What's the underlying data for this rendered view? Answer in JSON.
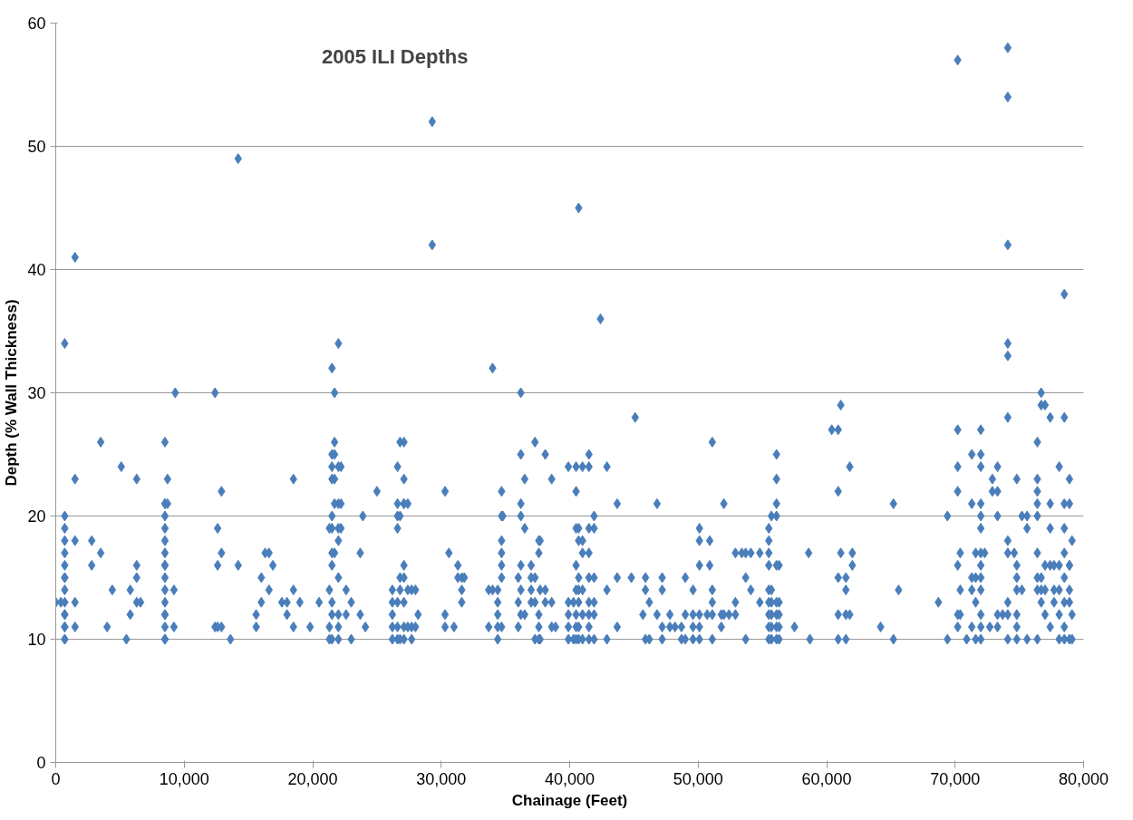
{
  "chart_data": {
    "type": "scatter",
    "title": "2005 ILI Depths",
    "xlabel": "Chainage (Feet)",
    "ylabel": "Depth (% Wall Thickness)",
    "xlim": [
      0,
      80000
    ],
    "ylim": [
      0,
      60
    ],
    "xticks": [
      0,
      {
        "value": 10000,
        "label": "10,000"
      },
      {
        "value": 20000,
        "label": "20,000"
      },
      {
        "value": 30000,
        "label": "30,000"
      },
      {
        "value": 40000,
        "label": "40,000"
      },
      {
        "value": 50000,
        "label": "50,000"
      },
      {
        "value": 60000,
        "label": "60,000"
      },
      {
        "value": 70000,
        "label": "70,000"
      },
      {
        "value": 80000,
        "label": "80,000"
      }
    ],
    "yticks": [
      0,
      10,
      20,
      30,
      40,
      50,
      60
    ],
    "grid": "y",
    "marker": "diamond",
    "series": [
      {
        "color": "#4a7ebb",
        "x": [
          0,
          400,
          700,
          700,
          700,
          700,
          700,
          700,
          700,
          700,
          700,
          700,
          700,
          700,
          700,
          700,
          700,
          700,
          1500,
          1500,
          1500,
          1500,
          1500,
          2800,
          2800,
          3500,
          3500,
          4400,
          4000,
          5100,
          5800,
          5800,
          5500,
          6300,
          6300,
          6300,
          6300,
          6600,
          8500,
          8500,
          8500,
          8500,
          8500,
          8500,
          8500,
          8500,
          8500,
          8500,
          8500,
          8500,
          8500,
          8500,
          8500,
          8500,
          8500,
          8700,
          8700,
          9200,
          9200,
          9300,
          12400,
          12400,
          12600,
          12600,
          12600,
          12900,
          12900,
          12900,
          13600,
          14200,
          14200,
          15600,
          15600,
          16000,
          16000,
          16300,
          16600,
          16600,
          16900,
          17600,
          18000,
          18000,
          18500,
          18500,
          18500,
          19000,
          19800,
          20500,
          21300,
          21300,
          21300,
          21300,
          21500,
          21500,
          21500,
          21500,
          21500,
          21500,
          21500,
          21500,
          21500,
          21500,
          21500,
          21700,
          21700,
          21700,
          21700,
          21700,
          21700,
          22000,
          22000,
          22000,
          22000,
          22000,
          22000,
          22000,
          22000,
          22000,
          22200,
          22200,
          22200,
          22600,
          22600,
          23000,
          23000,
          23700,
          23700,
          23900,
          24100,
          25000,
          26200,
          26200,
          26200,
          26200,
          26200,
          26600,
          26600,
          26600,
          26600,
          26600,
          26600,
          26600,
          26800,
          26800,
          26800,
          26800,
          26800,
          27100,
          27100,
          27100,
          27100,
          27100,
          27100,
          27100,
          27100,
          27100,
          27400,
          27400,
          27400,
          27700,
          27700,
          27700,
          28000,
          28000,
          28200,
          29300,
          29300,
          30300,
          30300,
          30300,
          30600,
          31000,
          31300,
          31300,
          31600,
          31600,
          31600,
          31800,
          33700,
          33700,
          34000,
          34000,
          34400,
          34400,
          34400,
          34400,
          34400,
          34700,
          34700,
          34700,
          34700,
          34700,
          34700,
          34700,
          34800,
          36000,
          36000,
          36000,
          36200,
          36200,
          36200,
          36200,
          36200,
          36200,
          36200,
          36500,
          36500,
          36500,
          37000,
          37000,
          37000,
          37000,
          37300,
          37300,
          37300,
          37300,
          37600,
          37600,
          37600,
          37600,
          37600,
          37700,
          37700,
          37700,
          38100,
          38100,
          38100,
          38600,
          38600,
          38600,
          38900,
          39900,
          39900,
          39900,
          39900,
          39900,
          40300,
          40300,
          40500,
          40500,
          40500,
          40500,
          40500,
          40500,
          40500,
          40500,
          40700,
          40700,
          40700,
          40700,
          40700,
          40700,
          40700,
          40700,
          41000,
          41000,
          41000,
          41000,
          41000,
          41000,
          41500,
          41500,
          41500,
          41500,
          41500,
          41500,
          41500,
          41500,
          41500,
          41900,
          41900,
          41900,
          41900,
          41900,
          41900,
          42400,
          42900,
          42900,
          42900,
          43700,
          43700,
          43700,
          44800,
          45100,
          45700,
          45900,
          45900,
          45900,
          46200,
          46200,
          46800,
          46800,
          47200,
          47200,
          47200,
          47200,
          47800,
          47800,
          48200,
          48700,
          48700,
          49000,
          49000,
          49000,
          49600,
          49600,
          49600,
          49600,
          50100,
          50100,
          50100,
          50100,
          50100,
          50100,
          50700,
          50900,
          50900,
          51100,
          51100,
          51100,
          51100,
          51100,
          51800,
          51800,
          52000,
          52000,
          52400,
          52900,
          52900,
          52900,
          53400,
          53700,
          53700,
          53700,
          54100,
          54100,
          54800,
          54800,
          55500,
          55500,
          55500,
          55500,
          55500,
          55500,
          55500,
          55500,
          55500,
          55700,
          55700,
          55700,
          55700,
          55700,
          55700,
          56100,
          56100,
          56100,
          56100,
          56100,
          56100,
          56100,
          56100,
          56100,
          56300,
          56300,
          56300,
          56300,
          56300,
          57500,
          58600,
          58700,
          60400,
          60900,
          60900,
          60900,
          60900,
          60900,
          61100,
          61100,
          61500,
          61500,
          61500,
          61500,
          61800,
          61800,
          62000,
          62000,
          64200,
          65200,
          65200,
          65600,
          68700,
          69400,
          69400,
          70200,
          70200,
          70200,
          70200,
          70200,
          70200,
          70200,
          70400,
          70400,
          70400,
          70900,
          71300,
          71300,
          71300,
          71300,
          71300,
          71600,
          71600,
          71600,
          71600,
          72000,
          72000,
          72000,
          72000,
          72000,
          72000,
          72000,
          72000,
          72000,
          72000,
          72000,
          72000,
          72000,
          72300,
          72700,
          72900,
          72900,
          73300,
          73300,
          73300,
          73300,
          73300,
          73700,
          74100,
          74100,
          74100,
          74100,
          74100,
          74100,
          74100,
          74100,
          74100,
          74100,
          74100,
          74600,
          74800,
          74800,
          74800,
          74800,
          74800,
          74800,
          74800,
          75200,
          75200,
          75600,
          75600,
          75600,
          76400,
          76400,
          76400,
          76400,
          76400,
          76400,
          76400,
          76400,
          76400,
          76700,
          76700,
          76700,
          76700,
          76700,
          77000,
          77000,
          77000,
          77000,
          77400,
          77400,
          77400,
          77400,
          77400,
          77700,
          77700,
          77700,
          78100,
          78100,
          78100,
          78100,
          78100,
          78500,
          78500,
          78500,
          78500,
          78500,
          78500,
          78500,
          78500,
          78500,
          78900,
          78900,
          78900,
          78900,
          78900,
          78900,
          78900,
          79100,
          79100,
          79100
        ],
        "values": [
          13,
          13,
          34,
          20,
          19,
          18,
          17,
          16,
          15,
          15,
          14,
          13,
          12,
          12,
          11,
          11,
          10,
          10,
          41,
          23,
          18,
          13,
          11,
          18,
          16,
          26,
          17,
          14,
          11,
          24,
          14,
          12,
          10,
          23,
          16,
          15,
          13,
          13,
          26,
          21,
          21,
          20,
          19,
          18,
          17,
          16,
          16,
          15,
          14,
          13,
          12,
          12,
          11,
          10,
          10,
          23,
          21,
          14,
          11,
          30,
          30,
          11,
          19,
          16,
          11,
          22,
          17,
          11,
          10,
          49,
          16,
          12,
          11,
          15,
          13,
          17,
          17,
          14,
          16,
          13,
          12,
          13,
          23,
          14,
          11,
          13,
          11,
          13,
          19,
          14,
          11,
          10,
          32,
          25,
          24,
          23,
          20,
          19,
          17,
          16,
          13,
          12,
          10,
          30,
          26,
          25,
          23,
          21,
          17,
          34,
          24,
          21,
          19,
          18,
          15,
          12,
          11,
          10,
          21,
          24,
          19,
          14,
          12,
          13,
          10,
          12,
          17,
          20,
          11,
          22,
          14,
          13,
          12,
          11,
          10,
          24,
          21,
          20,
          19,
          13,
          11,
          10,
          26,
          20,
          15,
          14,
          10,
          26,
          23,
          21,
          21,
          16,
          15,
          13,
          11,
          10,
          21,
          11,
          14,
          14,
          11,
          10,
          14,
          11,
          12,
          52,
          42,
          22,
          12,
          11,
          17,
          11,
          16,
          15,
          15,
          14,
          13,
          15,
          11,
          14,
          32,
          14,
          14,
          13,
          12,
          11,
          10,
          22,
          20,
          18,
          17,
          16,
          15,
          11,
          20,
          15,
          13,
          11,
          30,
          25,
          21,
          20,
          16,
          14,
          12,
          23,
          19,
          12,
          16,
          15,
          14,
          13,
          26,
          15,
          13,
          10,
          18,
          17,
          12,
          11,
          10,
          18,
          14,
          10,
          25,
          14,
          13,
          23,
          13,
          11,
          11,
          24,
          13,
          12,
          11,
          10,
          13,
          10,
          24,
          22,
          19,
          16,
          14,
          12,
          11,
          10,
          45,
          19,
          18,
          15,
          14,
          13,
          11,
          10,
          24,
          18,
          17,
          14,
          12,
          10,
          25,
          24,
          19,
          17,
          15,
          13,
          12,
          11,
          10,
          20,
          19,
          15,
          13,
          12,
          10,
          36,
          24,
          14,
          10,
          21,
          15,
          11,
          15,
          28,
          12,
          15,
          14,
          10,
          13,
          10,
          21,
          12,
          15,
          14,
          11,
          10,
          12,
          11,
          11,
          11,
          10,
          15,
          12,
          10,
          14,
          12,
          11,
          10,
          19,
          18,
          16,
          12,
          11,
          10,
          12,
          16,
          18,
          26,
          14,
          13,
          12,
          10,
          12,
          11,
          21,
          12,
          12,
          17,
          13,
          12,
          17,
          17,
          15,
          10,
          17,
          14,
          13,
          17,
          19,
          18,
          17,
          16,
          14,
          13,
          12,
          11,
          10,
          20,
          14,
          13,
          12,
          11,
          10,
          25,
          23,
          21,
          20,
          16,
          13,
          12,
          11,
          10,
          16,
          13,
          12,
          11,
          10,
          11,
          17,
          10,
          27,
          27,
          22,
          15,
          12,
          10,
          29,
          17,
          15,
          14,
          12,
          10,
          24,
          12,
          17,
          16,
          11,
          21,
          10,
          14,
          13,
          20,
          10,
          57,
          27,
          24,
          22,
          16,
          12,
          11,
          17,
          14,
          12,
          10,
          25,
          21,
          15,
          14,
          11,
          17,
          15,
          13,
          10,
          27,
          25,
          24,
          21,
          20,
          19,
          17,
          16,
          15,
          14,
          12,
          11,
          10,
          17,
          11,
          23,
          22,
          24,
          22,
          20,
          11,
          12,
          12,
          58,
          54,
          42,
          34,
          33,
          28,
          18,
          17,
          13,
          12,
          10,
          17,
          23,
          16,
          15,
          14,
          12,
          11,
          10,
          20,
          14,
          20,
          19,
          10,
          26,
          23,
          22,
          21,
          20,
          17,
          15,
          14,
          10,
          30,
          29,
          15,
          14,
          13,
          29,
          16,
          14,
          12,
          28,
          21,
          19,
          16,
          11,
          16,
          14,
          13,
          24,
          16,
          14,
          12,
          10,
          38,
          28,
          21,
          19,
          17,
          15,
          13,
          11,
          10,
          23,
          21,
          16,
          16,
          14,
          13,
          10,
          18,
          12,
          10
        ]
      }
    ]
  }
}
